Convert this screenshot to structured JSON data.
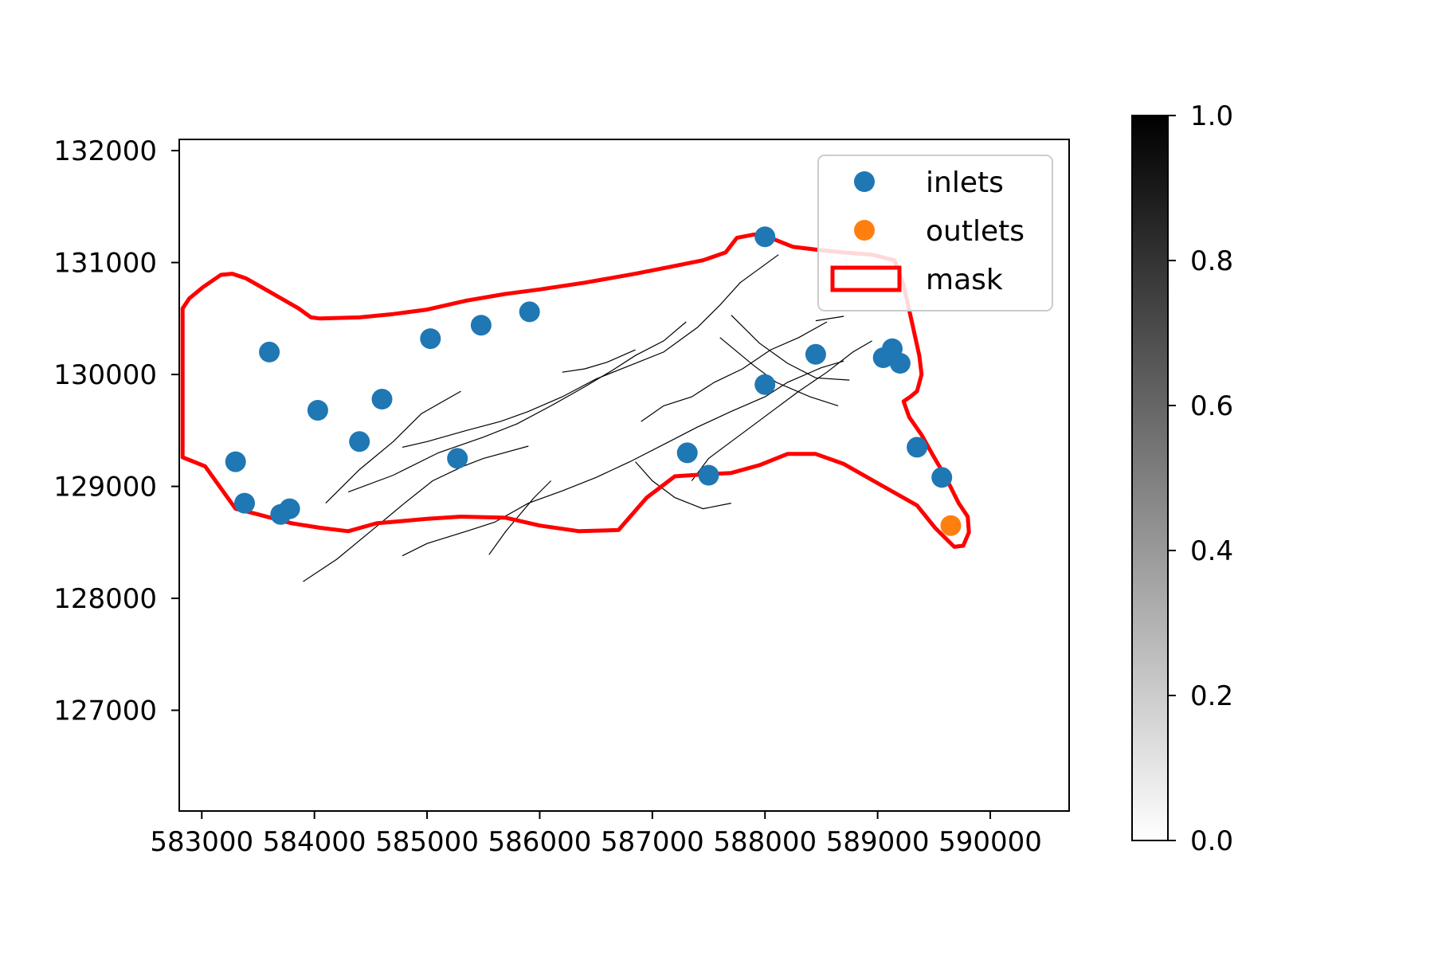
{
  "chart_data": {
    "type": "scatter",
    "title": "",
    "xlabel": "",
    "ylabel": "",
    "xlim": [
      582800,
      590700
    ],
    "ylim": [
      126100,
      132100
    ],
    "x_ticks": [
      583000,
      584000,
      585000,
      586000,
      587000,
      588000,
      589000,
      590000
    ],
    "x_tick_labels": [
      "583000",
      "584000",
      "585000",
      "586000",
      "587000",
      "588000",
      "589000",
      "590000"
    ],
    "y_ticks": [
      127000,
      128000,
      129000,
      130000,
      131000,
      132000
    ],
    "y_tick_labels": [
      "127000",
      "128000",
      "129000",
      "130000",
      "131000",
      "132000"
    ],
    "grid": false,
    "legend_placement": "upper right",
    "legend": [
      {
        "label": "inlets",
        "kind": "marker",
        "color": "#1f77b4"
      },
      {
        "label": "outlets",
        "kind": "marker",
        "color": "#ff7f0e"
      },
      {
        "label": "mask",
        "kind": "patch",
        "color": "#ff0000"
      }
    ],
    "series": [
      {
        "name": "inlets",
        "color": "#1f77b4",
        "points": [
          [
            583300,
            129220
          ],
          [
            583380,
            128850
          ],
          [
            583700,
            128750
          ],
          [
            583780,
            128800
          ],
          [
            583600,
            130200
          ],
          [
            584030,
            129680
          ],
          [
            584400,
            129400
          ],
          [
            584600,
            129780
          ],
          [
            585030,
            130320
          ],
          [
            585270,
            129250
          ],
          [
            585480,
            130440
          ],
          [
            585910,
            130560
          ],
          [
            587310,
            129300
          ],
          [
            587500,
            129100
          ],
          [
            588000,
            131230
          ],
          [
            588000,
            129910
          ],
          [
            588450,
            130180
          ],
          [
            589050,
            130150
          ],
          [
            589130,
            130230
          ],
          [
            589200,
            130100
          ],
          [
            589350,
            129350
          ],
          [
            589570,
            129080
          ]
        ]
      },
      {
        "name": "outlets",
        "color": "#ff7f0e",
        "points": [
          [
            589650,
            128650
          ]
        ]
      }
    ],
    "mask": {
      "name": "mask",
      "color": "#ff0000",
      "polygon": [
        [
          582830,
          130590
        ],
        [
          582890,
          130680
        ],
        [
          583010,
          130780
        ],
        [
          583170,
          130890
        ],
        [
          583270,
          130900
        ],
        [
          583390,
          130860
        ],
        [
          583600,
          130740
        ],
        [
          583860,
          130590
        ],
        [
          583970,
          130510
        ],
        [
          584050,
          130500
        ],
        [
          584400,
          130510
        ],
        [
          584700,
          130540
        ],
        [
          585000,
          130580
        ],
        [
          585350,
          130660
        ],
        [
          585700,
          130720
        ],
        [
          586000,
          130760
        ],
        [
          586400,
          130820
        ],
        [
          586850,
          130900
        ],
        [
          587150,
          130960
        ],
        [
          587450,
          131020
        ],
        [
          587650,
          131090
        ],
        [
          587750,
          131220
        ],
        [
          587900,
          131250
        ],
        [
          588000,
          131240
        ],
        [
          588250,
          131140
        ],
        [
          588500,
          131110
        ],
        [
          588700,
          131090
        ],
        [
          588950,
          131070
        ],
        [
          589150,
          131020
        ],
        [
          589230,
          130800
        ],
        [
          589310,
          130440
        ],
        [
          589370,
          130170
        ],
        [
          589390,
          130000
        ],
        [
          589350,
          129850
        ],
        [
          589290,
          129800
        ],
        [
          589230,
          129760
        ],
        [
          589280,
          129620
        ],
        [
          589390,
          129460
        ],
        [
          589490,
          129280
        ],
        [
          589600,
          129090
        ],
        [
          589720,
          128850
        ],
        [
          589800,
          128730
        ],
        [
          589810,
          128590
        ],
        [
          589760,
          128470
        ],
        [
          589680,
          128460
        ],
        [
          589600,
          128540
        ],
        [
          589510,
          128630
        ],
        [
          589350,
          128830
        ],
        [
          589050,
          129000
        ],
        [
          588700,
          129200
        ],
        [
          588450,
          129290
        ],
        [
          588200,
          129290
        ],
        [
          587950,
          129190
        ],
        [
          587700,
          129120
        ],
        [
          587500,
          129110
        ],
        [
          587200,
          129090
        ],
        [
          586950,
          128900
        ],
        [
          586700,
          128610
        ],
        [
          586350,
          128600
        ],
        [
          586000,
          128650
        ],
        [
          585700,
          128720
        ],
        [
          585300,
          128730
        ],
        [
          585000,
          128710
        ],
        [
          584550,
          128670
        ],
        [
          584300,
          128600
        ],
        [
          584050,
          128630
        ],
        [
          583800,
          128670
        ],
        [
          583500,
          128750
        ],
        [
          583300,
          128800
        ],
        [
          583030,
          129180
        ],
        [
          582830,
          129260
        ]
      ]
    },
    "colorbar": {
      "range": [
        0,
        1
      ],
      "cmap": "gray_r",
      "ticks": [
        0.0,
        0.2,
        0.4,
        0.6,
        0.8,
        1.0
      ],
      "tick_labels": [
        "0.0",
        "0.2",
        "0.4",
        "0.6",
        "0.8",
        "1.0"
      ]
    },
    "lines": {
      "color": "#000000",
      "paths": [
        [
          [
            583900,
            128150
          ],
          [
            584200,
            128350
          ],
          [
            584500,
            128600
          ],
          [
            584800,
            128850
          ],
          [
            585050,
            129050
          ],
          [
            585320,
            129180
          ],
          [
            585500,
            129250
          ],
          [
            585900,
            129360
          ]
        ],
        [
          [
            584100,
            128850
          ],
          [
            584400,
            129150
          ],
          [
            584700,
            129400
          ],
          [
            584950,
            129650
          ],
          [
            585300,
            129850
          ]
        ],
        [
          [
            584300,
            128950
          ],
          [
            584700,
            129100
          ],
          [
            585100,
            129300
          ],
          [
            585500,
            129440
          ],
          [
            585800,
            129560
          ],
          [
            586100,
            129720
          ],
          [
            586400,
            129890
          ],
          [
            586650,
            130040
          ],
          [
            586850,
            130170
          ],
          [
            587100,
            130300
          ],
          [
            587300,
            130470
          ]
        ],
        [
          [
            584780,
            129350
          ],
          [
            585000,
            129400
          ],
          [
            585350,
            129500
          ],
          [
            585650,
            129580
          ],
          [
            585900,
            129670
          ],
          [
            586200,
            129800
          ],
          [
            586500,
            129960
          ],
          [
            586800,
            130080
          ],
          [
            587100,
            130200
          ],
          [
            587400,
            130420
          ],
          [
            587600,
            130620
          ],
          [
            587780,
            130820
          ],
          [
            588120,
            131070
          ]
        ],
        [
          [
            586200,
            130020
          ],
          [
            586400,
            130050
          ],
          [
            586600,
            130110
          ],
          [
            586850,
            130220
          ]
        ],
        [
          [
            584780,
            128380
          ],
          [
            585000,
            128490
          ],
          [
            585350,
            128600
          ],
          [
            585600,
            128680
          ],
          [
            585900,
            128850
          ],
          [
            586200,
            128960
          ],
          [
            586500,
            129080
          ],
          [
            586800,
            129220
          ],
          [
            587150,
            129400
          ],
          [
            587400,
            129530
          ],
          [
            587700,
            129670
          ],
          [
            588000,
            129800
          ],
          [
            588200,
            129930
          ],
          [
            588500,
            130060
          ],
          [
            588700,
            130120
          ]
        ],
        [
          [
            586900,
            129580
          ],
          [
            587100,
            129720
          ],
          [
            587350,
            129800
          ],
          [
            587550,
            129930
          ],
          [
            587800,
            130050
          ],
          [
            588050,
            130220
          ],
          [
            588300,
            130330
          ],
          [
            588550,
            130470
          ]
        ],
        [
          [
            587600,
            130330
          ],
          [
            587900,
            130080
          ],
          [
            588100,
            129930
          ],
          [
            588400,
            129800
          ],
          [
            588650,
            129720
          ]
        ],
        [
          [
            587700,
            130530
          ],
          [
            587950,
            130280
          ],
          [
            588200,
            130100
          ],
          [
            588450,
            129970
          ],
          [
            588750,
            129950
          ]
        ],
        [
          [
            585550,
            128390
          ],
          [
            585700,
            128600
          ],
          [
            585950,
            128900
          ],
          [
            586100,
            129050
          ]
        ],
        [
          [
            586850,
            129220
          ],
          [
            587000,
            129050
          ],
          [
            587200,
            128900
          ],
          [
            587450,
            128800
          ],
          [
            587700,
            128850
          ]
        ],
        [
          [
            587350,
            129050
          ],
          [
            587500,
            129250
          ],
          [
            587700,
            129400
          ],
          [
            587900,
            129550
          ],
          [
            588100,
            129700
          ],
          [
            588300,
            129850
          ],
          [
            588550,
            130020
          ],
          [
            588780,
            130200
          ],
          [
            588950,
            130300
          ]
        ],
        [
          [
            588450,
            130480
          ],
          [
            588700,
            130520
          ]
        ]
      ]
    }
  }
}
